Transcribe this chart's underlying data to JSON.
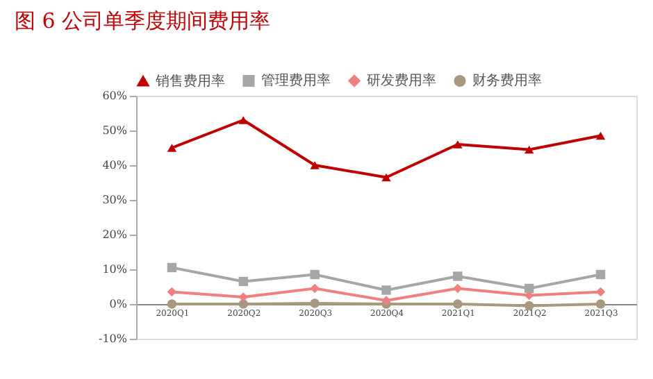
{
  "chart_data": {
    "type": "line",
    "title": "图 6  公司单季度期间费用率",
    "categories": [
      "2020Q1",
      "2020Q2",
      "2020Q3",
      "2020Q4",
      "2021Q1",
      "2021Q2",
      "2021Q3"
    ],
    "series": [
      {
        "name": "销售费用率",
        "color": "#c00000",
        "marker": "triangle",
        "values": [
          45,
          53,
          40,
          36.5,
          46,
          44.5,
          48.5
        ]
      },
      {
        "name": "管理费用率",
        "color": "#a6a6a6",
        "marker": "square",
        "values": [
          10.5,
          6.5,
          8.5,
          4,
          8,
          4.5,
          8.5
        ]
      },
      {
        "name": "研发费用率",
        "color": "#f08080",
        "marker": "diamond",
        "values": [
          3.5,
          2,
          4.5,
          1,
          4.5,
          2.5,
          3.5
        ]
      },
      {
        "name": "财务费用率",
        "color": "#a89880",
        "marker": "circle",
        "values": [
          0,
          0,
          0.2,
          0,
          0,
          -0.5,
          0
        ]
      }
    ],
    "ylim": [
      -10,
      60
    ],
    "yticks": [
      {
        "value": -10,
        "label": "-10%"
      },
      {
        "value": 0,
        "label": "0%"
      },
      {
        "value": 10,
        "label": "10%"
      },
      {
        "value": 20,
        "label": "20%"
      },
      {
        "value": 30,
        "label": "30%"
      },
      {
        "value": 40,
        "label": "40%"
      },
      {
        "value": 50,
        "label": "50%"
      },
      {
        "value": 60,
        "label": "60%"
      }
    ],
    "grid": false,
    "legend": "top"
  }
}
